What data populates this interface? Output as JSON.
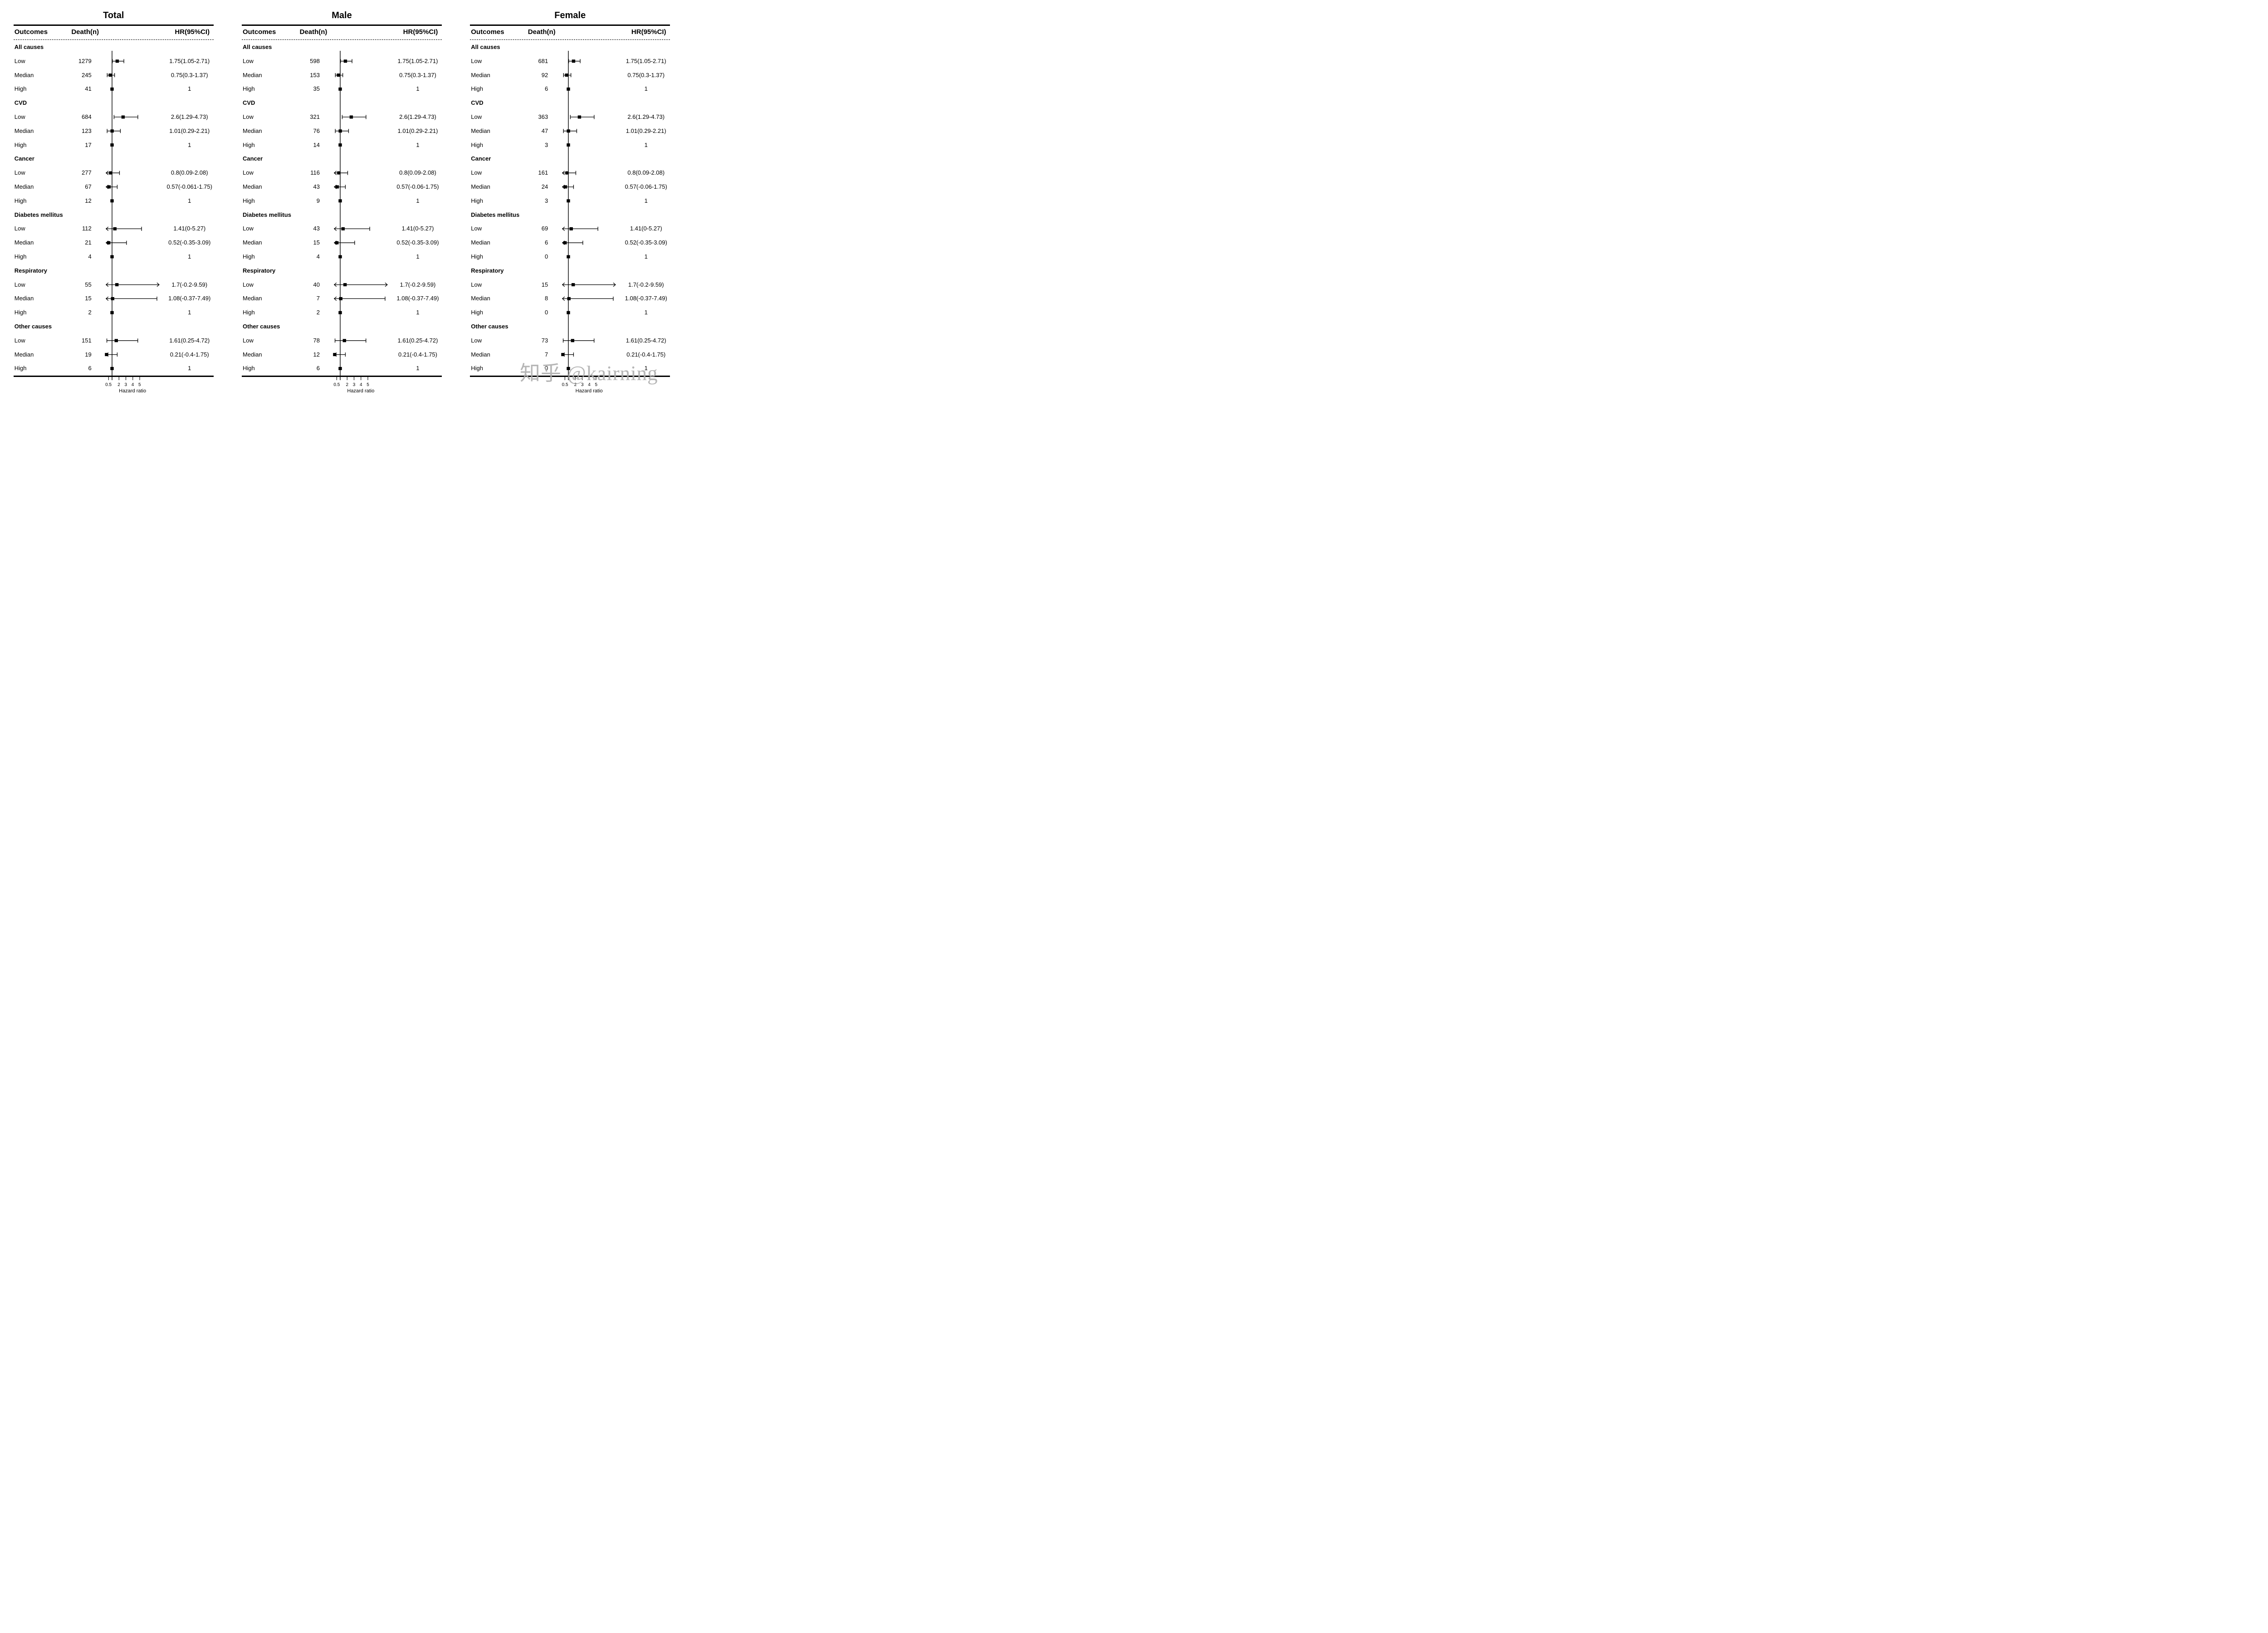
{
  "watermark": "知乎 @kairning",
  "chart_data": {
    "type": "forest",
    "xlabel": "Hazard ratio",
    "x_ticks": [
      0.5,
      2,
      3,
      4,
      5
    ],
    "x_tick_labels": [
      "0.5",
      "2",
      "3",
      "4",
      "5"
    ],
    "reference_line": 1,
    "axis_scale": "linear",
    "plot_window": [
      0.1,
      7.85
    ],
    "legend_position": "none",
    "grid": false,
    "columns": {
      "outcomes": "Outcomes",
      "deaths": "Death(n)",
      "hr": "HR(95%CI)"
    },
    "panels": [
      {
        "title": "Total",
        "groups": [
          {
            "name": "All causes",
            "rows": [
              {
                "label": "Low",
                "deaths": 1279,
                "hr": 1.75,
                "lo": 1.05,
                "hi": 2.71,
                "text": "1.75(1.05-2.71)"
              },
              {
                "label": "Median",
                "deaths": 245,
                "hr": 0.75,
                "lo": 0.3,
                "hi": 1.37,
                "text": "0.75(0.3-1.37)"
              },
              {
                "label": "High",
                "deaths": 41,
                "hr": 1,
                "lo": null,
                "hi": null,
                "text": "1"
              }
            ]
          },
          {
            "name": "CVD",
            "rows": [
              {
                "label": "Low",
                "deaths": 684,
                "hr": 2.6,
                "lo": 1.29,
                "hi": 4.73,
                "text": "2.6(1.29-4.73)"
              },
              {
                "label": "Median",
                "deaths": 123,
                "hr": 1.01,
                "lo": 0.29,
                "hi": 2.21,
                "text": "1.01(0.29-2.21)"
              },
              {
                "label": "High",
                "deaths": 17,
                "hr": 1,
                "lo": null,
                "hi": null,
                "text": "1"
              }
            ]
          },
          {
            "name": "Cancer",
            "rows": [
              {
                "label": "Low",
                "deaths": 277,
                "hr": 0.8,
                "lo": 0.09,
                "hi": 2.08,
                "text": "0.8(0.09-2.08)"
              },
              {
                "label": "Median",
                "deaths": 67,
                "hr": 0.57,
                "lo": -0.061,
                "hi": 1.75,
                "text": "0.57(-0.061-1.75)"
              },
              {
                "label": "High",
                "deaths": 12,
                "hr": 1,
                "lo": null,
                "hi": null,
                "text": "1"
              }
            ]
          },
          {
            "name": "Diabetes mellitus",
            "rows": [
              {
                "label": "Low",
                "deaths": 112,
                "hr": 1.41,
                "lo": 0,
                "hi": 5.27,
                "text": "1.41(0-5.27)"
              },
              {
                "label": "Median",
                "deaths": 21,
                "hr": 0.52,
                "lo": -0.35,
                "hi": 3.09,
                "text": "0.52(-0.35-3.09)"
              },
              {
                "label": "High",
                "deaths": 4,
                "hr": 1,
                "lo": null,
                "hi": null,
                "text": "1"
              }
            ]
          },
          {
            "name": "Respiratory",
            "rows": [
              {
                "label": "Low",
                "deaths": 55,
                "hr": 1.7,
                "lo": -0.2,
                "hi": 9.59,
                "text": "1.7(-0.2-9.59)"
              },
              {
                "label": "Median",
                "deaths": 15,
                "hr": 1.08,
                "lo": -0.37,
                "hi": 7.49,
                "text": "1.08(-0.37-7.49)"
              },
              {
                "label": "High",
                "deaths": 2,
                "hr": 1,
                "lo": null,
                "hi": null,
                "text": "1"
              }
            ]
          },
          {
            "name": "Other causes",
            "rows": [
              {
                "label": "Low",
                "deaths": 151,
                "hr": 1.61,
                "lo": 0.25,
                "hi": 4.72,
                "text": "1.61(0.25-4.72)"
              },
              {
                "label": "Median",
                "deaths": 19,
                "hr": 0.21,
                "lo": -0.4,
                "hi": 1.75,
                "text": "0.21(-0.4-1.75)"
              },
              {
                "label": "High",
                "deaths": 6,
                "hr": 1,
                "lo": null,
                "hi": null,
                "text": "1"
              }
            ]
          }
        ]
      },
      {
        "title": "Male",
        "groups": [
          {
            "name": "All causes",
            "rows": [
              {
                "label": "Low",
                "deaths": 598,
                "hr": 1.75,
                "lo": 1.05,
                "hi": 2.71,
                "text": "1.75(1.05-2.71)"
              },
              {
                "label": "Median",
                "deaths": 153,
                "hr": 0.75,
                "lo": 0.3,
                "hi": 1.37,
                "text": "0.75(0.3-1.37)"
              },
              {
                "label": "High",
                "deaths": 35,
                "hr": 1,
                "lo": null,
                "hi": null,
                "text": "1"
              }
            ]
          },
          {
            "name": "CVD",
            "rows": [
              {
                "label": "Low",
                "deaths": 321,
                "hr": 2.6,
                "lo": 1.29,
                "hi": 4.73,
                "text": "2.6(1.29-4.73)"
              },
              {
                "label": "Median",
                "deaths": 76,
                "hr": 1.01,
                "lo": 0.29,
                "hi": 2.21,
                "text": "1.01(0.29-2.21)"
              },
              {
                "label": "High",
                "deaths": 14,
                "hr": 1,
                "lo": null,
                "hi": null,
                "text": "1"
              }
            ]
          },
          {
            "name": "Cancer",
            "rows": [
              {
                "label": "Low",
                "deaths": 116,
                "hr": 0.8,
                "lo": 0.09,
                "hi": 2.08,
                "text": "0.8(0.09-2.08)"
              },
              {
                "label": "Median",
                "deaths": 43,
                "hr": 0.57,
                "lo": -0.06,
                "hi": 1.75,
                "text": "0.57(-0.06-1.75)"
              },
              {
                "label": "High",
                "deaths": 9,
                "hr": 1,
                "lo": null,
                "hi": null,
                "text": "1"
              }
            ]
          },
          {
            "name": "Diabetes mellitus",
            "rows": [
              {
                "label": "Low",
                "deaths": 43,
                "hr": 1.41,
                "lo": 0,
                "hi": 5.27,
                "text": "1.41(0-5.27)"
              },
              {
                "label": "Median",
                "deaths": 15,
                "hr": 0.52,
                "lo": -0.35,
                "hi": 3.09,
                "text": "0.52(-0.35-3.09)"
              },
              {
                "label": "High",
                "deaths": 4,
                "hr": 1,
                "lo": null,
                "hi": null,
                "text": "1"
              }
            ]
          },
          {
            "name": "Respiratory",
            "rows": [
              {
                "label": "Low",
                "deaths": 40,
                "hr": 1.7,
                "lo": -0.2,
                "hi": 9.59,
                "text": "1.7(-0.2-9.59)"
              },
              {
                "label": "Median",
                "deaths": 7,
                "hr": 1.08,
                "lo": -0.37,
                "hi": 7.49,
                "text": "1.08(-0.37-7.49)"
              },
              {
                "label": "High",
                "deaths": 2,
                "hr": 1,
                "lo": null,
                "hi": null,
                "text": "1"
              }
            ]
          },
          {
            "name": "Other causes",
            "rows": [
              {
                "label": "Low",
                "deaths": 78,
                "hr": 1.61,
                "lo": 0.25,
                "hi": 4.72,
                "text": "1.61(0.25-4.72)"
              },
              {
                "label": "Median",
                "deaths": 12,
                "hr": 0.21,
                "lo": -0.4,
                "hi": 1.75,
                "text": "0.21(-0.4-1.75)"
              },
              {
                "label": "High",
                "deaths": 6,
                "hr": 1,
                "lo": null,
                "hi": null,
                "text": "1"
              }
            ]
          }
        ]
      },
      {
        "title": "Female",
        "groups": [
          {
            "name": "All causes",
            "rows": [
              {
                "label": "Low",
                "deaths": 681,
                "hr": 1.75,
                "lo": 1.05,
                "hi": 2.71,
                "text": "1.75(1.05-2.71)"
              },
              {
                "label": "Median",
                "deaths": 92,
                "hr": 0.75,
                "lo": 0.3,
                "hi": 1.37,
                "text": "0.75(0.3-1.37)"
              },
              {
                "label": "High",
                "deaths": 6,
                "hr": 1,
                "lo": null,
                "hi": null,
                "text": "1"
              }
            ]
          },
          {
            "name": "CVD",
            "rows": [
              {
                "label": "Low",
                "deaths": 363,
                "hr": 2.6,
                "lo": 1.29,
                "hi": 4.73,
                "text": "2.6(1.29-4.73)"
              },
              {
                "label": "Median",
                "deaths": 47,
                "hr": 1.01,
                "lo": 0.29,
                "hi": 2.21,
                "text": "1.01(0.29-2.21)"
              },
              {
                "label": "High",
                "deaths": 3,
                "hr": 1,
                "lo": null,
                "hi": null,
                "text": "1"
              }
            ]
          },
          {
            "name": "Cancer",
            "rows": [
              {
                "label": "Low",
                "deaths": 161,
                "hr": 0.8,
                "lo": 0.09,
                "hi": 2.08,
                "text": "0.8(0.09-2.08)"
              },
              {
                "label": "Median",
                "deaths": 24,
                "hr": 0.57,
                "lo": -0.06,
                "hi": 1.75,
                "text": "0.57(-0.06-1.75)"
              },
              {
                "label": "High",
                "deaths": 3,
                "hr": 1,
                "lo": null,
                "hi": null,
                "text": "1"
              }
            ]
          },
          {
            "name": "Diabetes mellitus",
            "rows": [
              {
                "label": "Low",
                "deaths": 69,
                "hr": 1.41,
                "lo": 0,
                "hi": 5.27,
                "text": "1.41(0-5.27)"
              },
              {
                "label": "Median",
                "deaths": 6,
                "hr": 0.52,
                "lo": -0.35,
                "hi": 3.09,
                "text": "0.52(-0.35-3.09)"
              },
              {
                "label": "High",
                "deaths": 0,
                "hr": 1,
                "lo": null,
                "hi": null,
                "text": "1"
              }
            ]
          },
          {
            "name": "Respiratory",
            "rows": [
              {
                "label": "Low",
                "deaths": 15,
                "hr": 1.7,
                "lo": -0.2,
                "hi": 9.59,
                "text": "1.7(-0.2-9.59)"
              },
              {
                "label": "Median",
                "deaths": 8,
                "hr": 1.08,
                "lo": -0.37,
                "hi": 7.49,
                "text": "1.08(-0.37-7.49)"
              },
              {
                "label": "High",
                "deaths": 0,
                "hr": 1,
                "lo": null,
                "hi": null,
                "text": "1"
              }
            ]
          },
          {
            "name": "Other causes",
            "rows": [
              {
                "label": "Low",
                "deaths": 73,
                "hr": 1.61,
                "lo": 0.25,
                "hi": 4.72,
                "text": "1.61(0.25-4.72)"
              },
              {
                "label": "Median",
                "deaths": 7,
                "hr": 0.21,
                "lo": -0.4,
                "hi": 1.75,
                "text": "0.21(-0.4-1.75)"
              },
              {
                "label": "High",
                "deaths": 0,
                "hr": 1,
                "lo": null,
                "hi": null,
                "text": "1"
              }
            ]
          }
        ]
      }
    ],
    "colors": {
      "ink": "#000000",
      "background": "#ffffff",
      "watermark": "#acacac"
    }
  }
}
